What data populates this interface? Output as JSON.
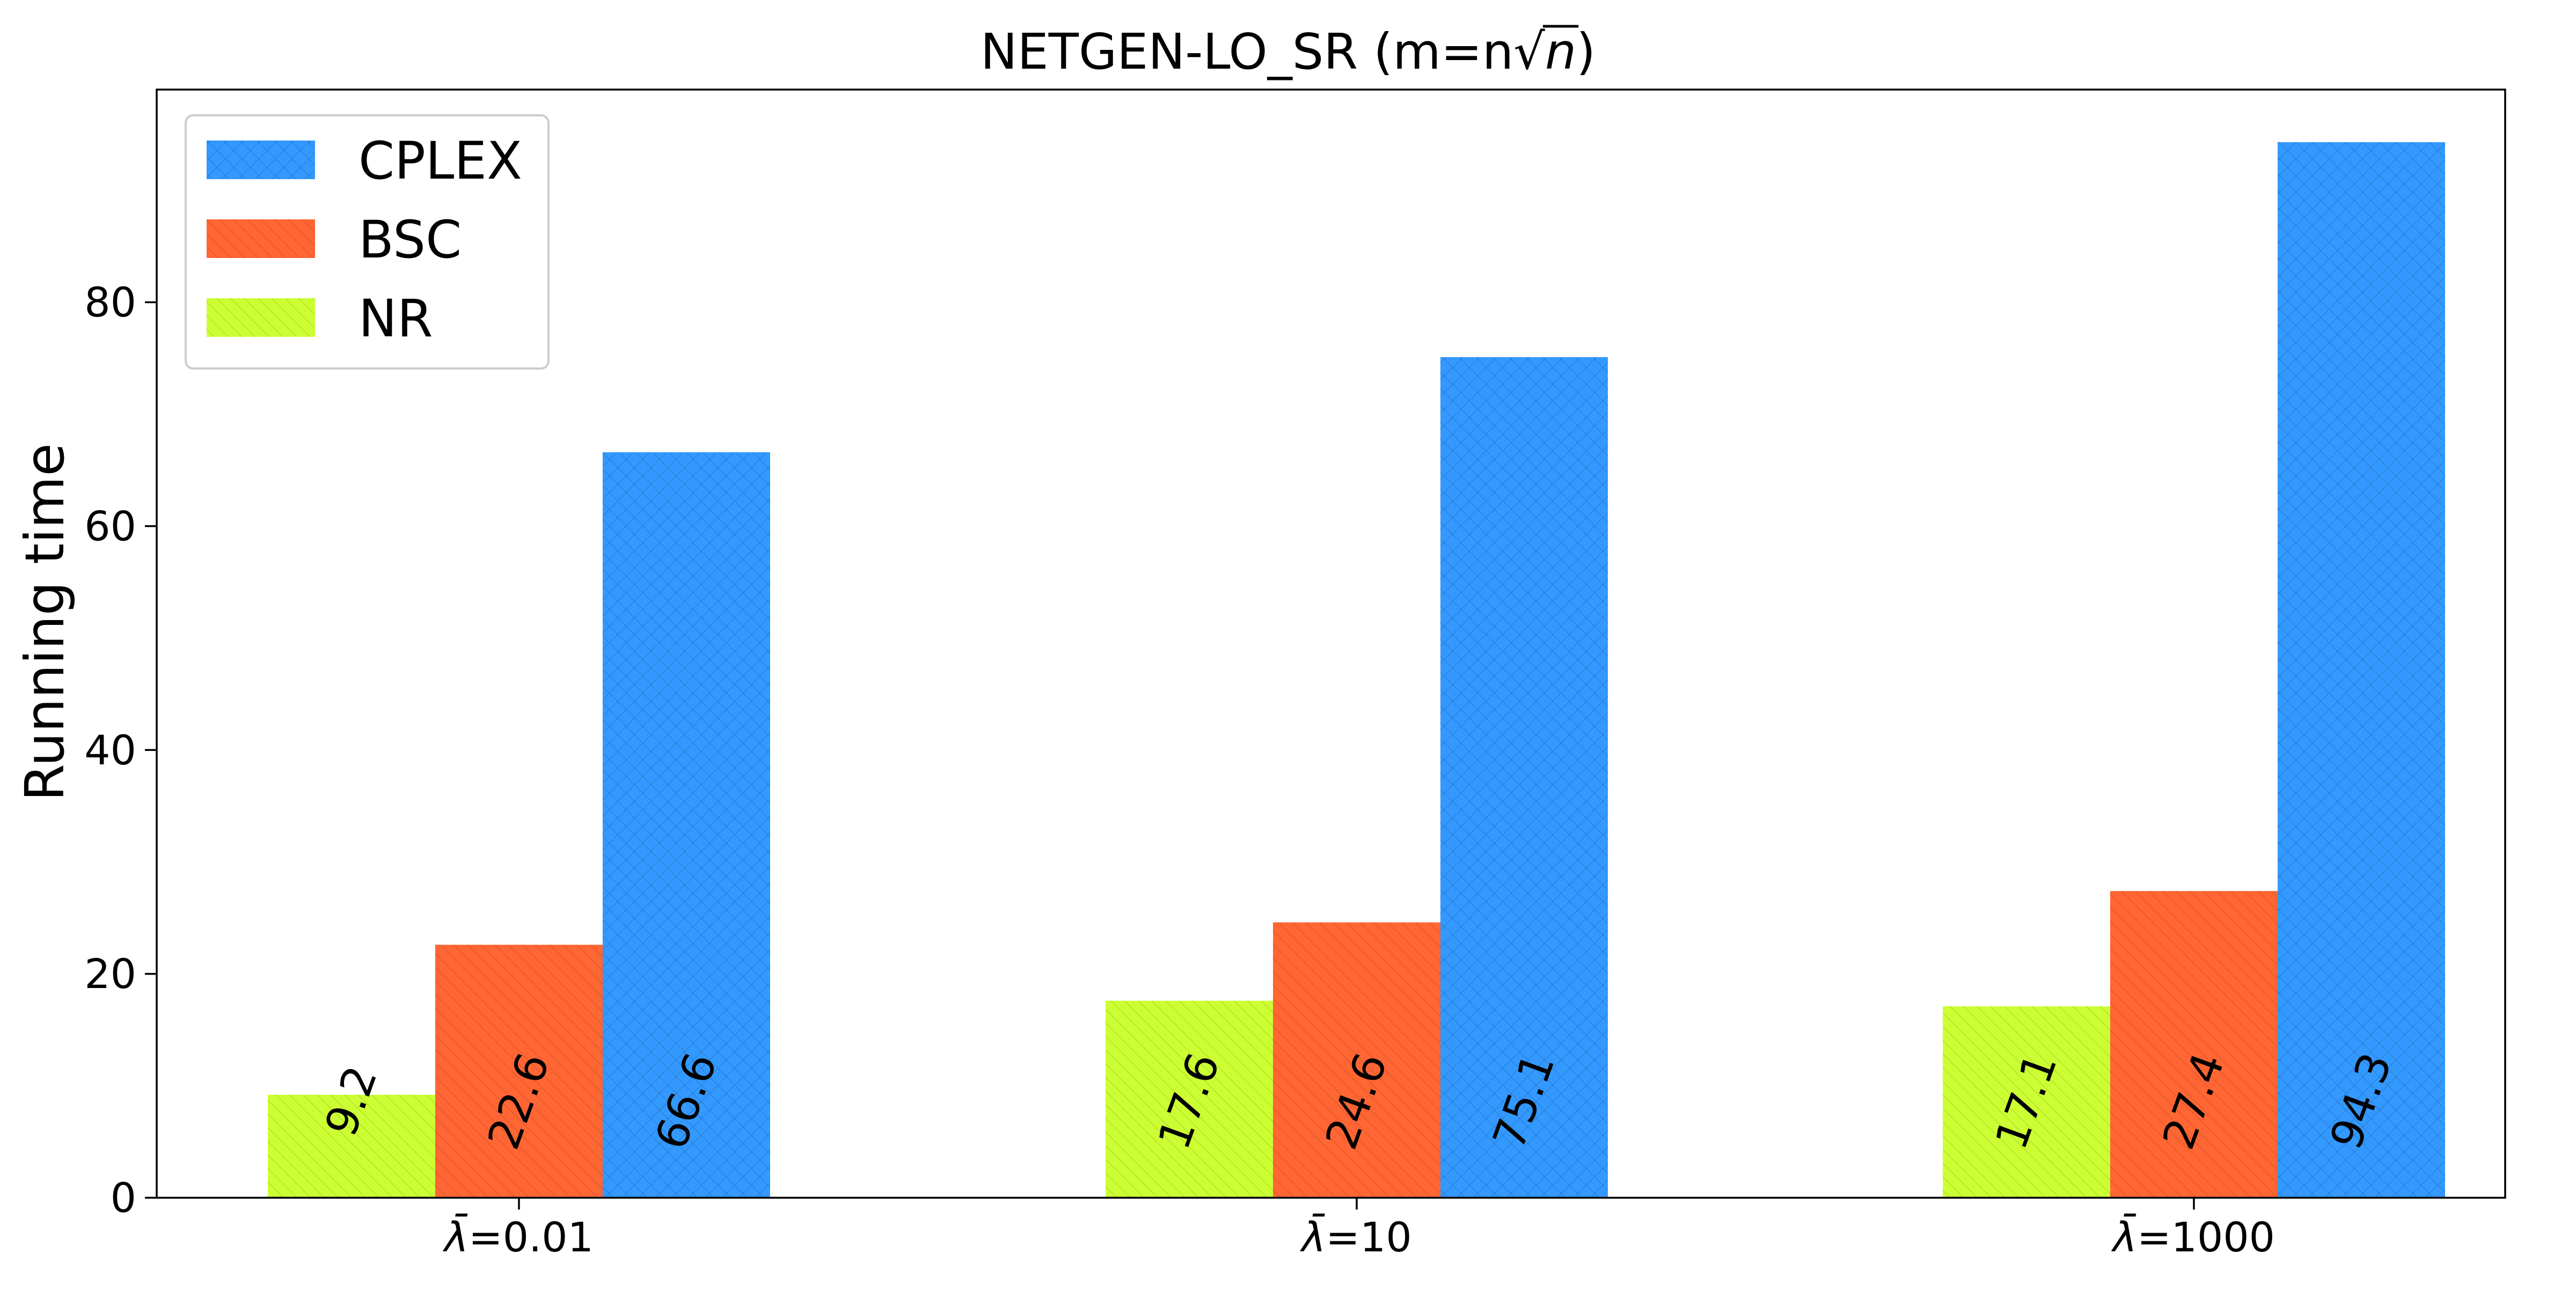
{
  "chart_data": {
    "type": "bar",
    "title": "NETGEN-LO_SR  (m=n√n)",
    "title_parts": {
      "prefix": "NETGEN-LO_SR  (m=n√",
      "italic": "n",
      "suffix": ")"
    },
    "xlabel": "",
    "ylabel": "Running time",
    "categories": [
      "λ̄=0.01",
      "λ̄=10",
      "λ̄=1000"
    ],
    "category_parts": [
      {
        "symbol": "λ̄",
        "value": "=0.01"
      },
      {
        "symbol": "λ̄",
        "value": "=10"
      },
      {
        "symbol": "λ̄",
        "value": "=1000"
      }
    ],
    "series": [
      {
        "name": "NR",
        "values": [
          9.2,
          17.6,
          17.1
        ],
        "labels": [
          "9.2",
          "17.6",
          "17.1"
        ],
        "color": "#CCFF33",
        "hatch": "diagonal-backslash"
      },
      {
        "name": "BSC",
        "values": [
          22.6,
          24.6,
          27.4
        ],
        "labels": [
          "22.6",
          "24.6",
          "27.4"
        ],
        "color": "#FF6633",
        "hatch": "diagonal-backslash"
      },
      {
        "name": "CPLEX",
        "values": [
          66.6,
          75.1,
          94.3
        ],
        "labels": [
          "66.6",
          "75.1",
          "94.3"
        ],
        "color": "#3399FF",
        "hatch": "crosshatch"
      }
    ],
    "legend_order": [
      "CPLEX",
      "BSC",
      "NR"
    ],
    "legend_position": "top-left",
    "ylim": [
      0,
      99
    ],
    "yticks": [
      0,
      20,
      40,
      60,
      80
    ],
    "grid": false
  }
}
